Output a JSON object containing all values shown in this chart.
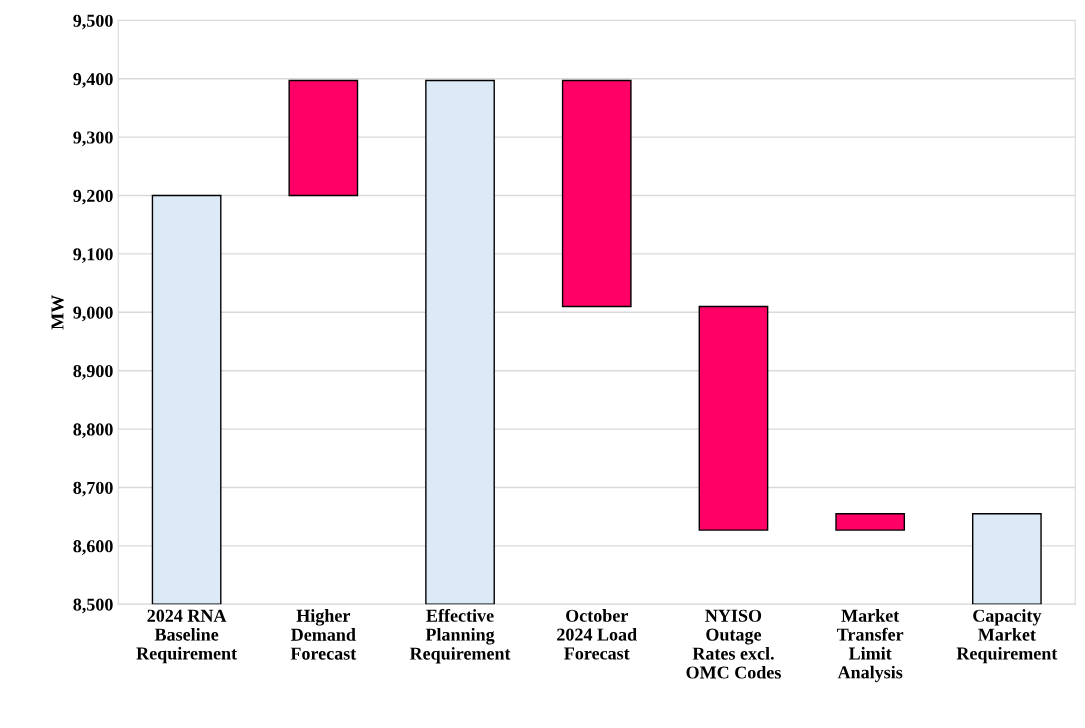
{
  "chart_data": {
    "type": "bar",
    "ylabel": "MW",
    "categories": [
      "2024 RNA\nBaseline\nRequirement",
      "Higher\nDemand\nForecast",
      "Effective\nPlanning\nRequirement",
      "October\n2024 Load\nForecast",
      "NYISO\nOutage\nRates excl.\nOMC Codes",
      "Market\nTransfer\nLimit\nAnalysis",
      "Capacity\nMarket\nRequirement"
    ],
    "base": [
      8500,
      9200,
      8500,
      9010,
      8627,
      8627,
      8500
    ],
    "values": [
      700,
      197,
      897,
      387,
      383,
      28,
      155
    ],
    "colors": [
      "#dce9f6",
      "#ff0066",
      "#dce9f6",
      "#ff0066",
      "#ff0066",
      "#ff0066",
      "#dce9f6"
    ],
    "ylim": [
      8500,
      9500
    ],
    "yticks": [
      {
        "value": 8500,
        "label": "8,500"
      },
      {
        "value": 8600,
        "label": "8,600"
      },
      {
        "value": 8700,
        "label": "8,700"
      },
      {
        "value": 8800,
        "label": "8,800"
      },
      {
        "value": 8900,
        "label": "8,900"
      },
      {
        "value": 9000,
        "label": "9,000"
      },
      {
        "value": 9100,
        "label": "9,100"
      },
      {
        "value": 9200,
        "label": "9,200"
      },
      {
        "value": 9300,
        "label": "9,300"
      },
      {
        "value": 9400,
        "label": "9,400"
      },
      {
        "value": 9500,
        "label": "9,500"
      }
    ],
    "grid": "y"
  }
}
